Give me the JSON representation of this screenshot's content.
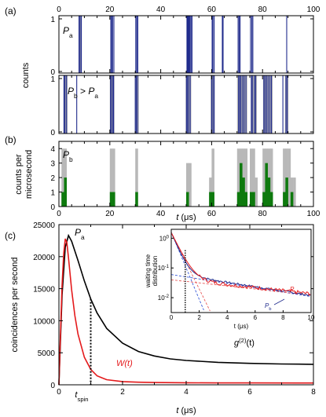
{
  "colors": {
    "blue": "#1f2a8c",
    "gray": "#b8b8b8",
    "green": "#0e7a0e",
    "red": "#e41a1c",
    "black": "#000000",
    "dashblue": "#3a5bd8",
    "dashred": "#e85a5a"
  },
  "panels": {
    "a": "(a)",
    "b": "(b)",
    "c": "(c)"
  },
  "chart_data": [
    {
      "id": "a_top",
      "type": "bar",
      "label_italic": "P",
      "label_sub": "a",
      "y_ticks": [
        "0",
        "1"
      ],
      "x_ticks": [
        "0",
        "20",
        "40",
        "60",
        "80",
        "100"
      ],
      "xlim": [
        0,
        100
      ],
      "ylabel": "counts",
      "gray_blocks": [
        [
          7.8,
          9.0
        ]
      ],
      "events": [
        7.9,
        8.3,
        8.8,
        20.4,
        20.7,
        21.1,
        21.6,
        30.2,
        30.6,
        31.0,
        50.3,
        50.6,
        50.9,
        51.2,
        51.5,
        51.9,
        52.3,
        60.2,
        60.5,
        61.0,
        64.2,
        64.5,
        70.4,
        70.8,
        71.2,
        75.3,
        75.8,
        76.2,
        89.5
      ]
    },
    {
      "id": "a_bottom",
      "type": "bar",
      "label_italic": "P",
      "label_sub": "b",
      "label_rest": " > ",
      "label_italic2": "P",
      "label_sub2": "a",
      "y_ticks": [
        "0",
        "1"
      ],
      "gray_blocks": [
        [
          1.8,
          3.4
        ],
        [
          20.0,
          21.8
        ],
        [
          29.8,
          31.4
        ],
        [
          49.8,
          52.0
        ],
        [
          59.6,
          61.2
        ],
        [
          70.0,
          74.0
        ],
        [
          75.4,
          77.8
        ],
        [
          80.2,
          84.0
        ],
        [
          88.8,
          90.2
        ]
      ],
      "events": [
        2.0,
        2.4,
        3.0,
        7.0,
        20.3,
        20.6,
        21.2,
        21.5,
        30.0,
        30.4,
        30.9,
        50.1,
        50.5,
        51.0,
        51.6,
        60.0,
        60.5,
        61.0,
        70.6,
        71.0,
        71.5,
        72.2,
        72.8,
        73.5,
        75.6,
        76.0,
        76.8,
        77.3,
        80.5,
        81.0,
        81.6,
        82.2,
        82.9,
        83.5,
        88.0,
        89.2,
        89.7
      ]
    },
    {
      "id": "b",
      "type": "bar",
      "label_italic": "P",
      "label_sub": "b",
      "ylabel_line1": "counts per",
      "ylabel_line2": "microsecond",
      "y_ticks": [
        "0",
        "1",
        "2",
        "3",
        "4"
      ],
      "x_ticks": [
        "0",
        "20",
        "40",
        "60",
        "80",
        "100"
      ],
      "xlabel_italic": "t",
      "xlabel_rest": " (μs)",
      "ylim": [
        0,
        4.5
      ],
      "gray": [
        [
          1,
          4
        ],
        [
          2,
          4
        ],
        [
          20,
          4
        ],
        [
          21,
          4
        ],
        [
          30,
          4
        ],
        [
          50,
          3
        ],
        [
          51,
          3
        ],
        [
          59,
          2
        ],
        [
          60,
          4
        ],
        [
          70,
          4
        ],
        [
          71,
          4
        ],
        [
          72,
          4
        ],
        [
          73,
          4
        ],
        [
          75,
          4
        ],
        [
          76,
          4
        ],
        [
          77,
          2
        ],
        [
          80,
          4
        ],
        [
          81,
          4
        ],
        [
          82,
          4
        ],
        [
          83,
          4
        ],
        [
          88,
          4
        ],
        [
          89,
          4
        ],
        [
          90,
          4
        ],
        [
          91,
          2
        ],
        [
          92,
          2
        ]
      ],
      "green": [
        [
          1,
          1
        ],
        [
          2,
          2
        ],
        [
          20,
          1
        ],
        [
          21,
          1
        ],
        [
          30,
          1
        ],
        [
          50,
          1
        ],
        [
          59,
          1
        ],
        [
          60,
          1
        ],
        [
          70,
          1
        ],
        [
          71,
          3
        ],
        [
          72,
          2
        ],
        [
          73,
          1
        ],
        [
          75,
          1
        ],
        [
          76,
          1
        ],
        [
          80,
          1
        ],
        [
          81,
          3
        ],
        [
          82,
          2
        ],
        [
          83,
          1
        ],
        [
          88,
          1
        ],
        [
          89,
          2
        ],
        [
          91,
          1
        ]
      ]
    },
    {
      "id": "c",
      "type": "line",
      "ylabel": "coincidences per second",
      "xlabel_italic": "t",
      "xlabel_rest": " (μs)",
      "xlim": [
        0,
        8
      ],
      "ylim": [
        0,
        25000
      ],
      "x_ticks": [
        "0",
        "2",
        "4",
        "6",
        "8"
      ],
      "y_ticks": [
        "0",
        "5000",
        "10000",
        "15000",
        "20000",
        "25000"
      ],
      "annot_P_italic": "P",
      "annot_P_sub": "a",
      "annot_g": "g",
      "annot_g_sup": "(2)",
      "annot_g_rest": "(t)",
      "annot_W": "W(t)",
      "annot_tspin_italic": "t",
      "annot_tspin_sub": "spin",
      "t_spin": 1.0,
      "series": [
        {
          "x": [
            0,
            0.1,
            0.2,
            0.3,
            0.4,
            0.6,
            0.8,
            1.0,
            1.2,
            1.5,
            2.0,
            2.5,
            3.0,
            3.5,
            4.0,
            5.0,
            6.0,
            7.0,
            8.0
          ],
          "y": [
            0,
            14000,
            21500,
            23300,
            22400,
            19400,
            16200,
            13400,
            11200,
            8800,
            6500,
            5200,
            4500,
            4050,
            3800,
            3500,
            3350,
            3250,
            3200
          ]
        },
        {
          "x": [
            0,
            0.05,
            0.1,
            0.15,
            0.2,
            0.25,
            0.3,
            0.4,
            0.5,
            0.6,
            0.8,
            1.0,
            1.2,
            1.5,
            2.0,
            2.5,
            3.0,
            4.0,
            5.0,
            6.0,
            8.0
          ],
          "y": [
            0,
            8000,
            15500,
            20500,
            22800,
            22200,
            19800,
            14800,
            10800,
            7900,
            4300,
            2400,
            1400,
            800,
            500,
            400,
            350,
            320,
            300,
            290,
            280
          ]
        }
      ]
    },
    {
      "id": "c_inset",
      "type": "line",
      "ylabel_line1": "waiting time",
      "ylabel_line2": "distribution",
      "xlabel": "t (μs)",
      "xlim": [
        0,
        10
      ],
      "ylim_log": [
        -2.5,
        0.3
      ],
      "x_ticks": [
        "0",
        "2",
        "4",
        "6",
        "8",
        "10"
      ],
      "y_ticks": [
        "10",
        "10",
        "10"
      ],
      "y_ticks_sup": [
        "0",
        "-1",
        "-2"
      ],
      "legend_Pa": "P",
      "legend_Pa_sub": "a",
      "legend_Pb": "P",
      "legend_Pb_sub": "b",
      "t_spin": 1.0
    }
  ]
}
